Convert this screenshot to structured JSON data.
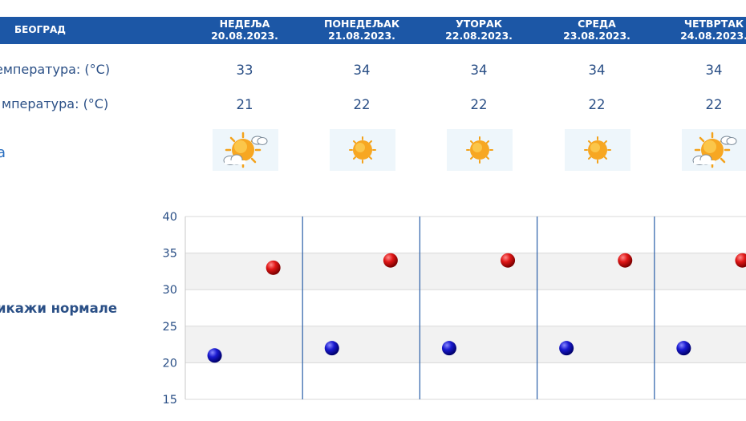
{
  "header": {
    "city": "БЕОГРАД"
  },
  "days": [
    {
      "name": "НЕДЕЉА",
      "date": "20.08.2023.",
      "max": "33",
      "min": "21",
      "icon": "partly-cloudy-sun-icon"
    },
    {
      "name": "ПОНЕДЕЉАК",
      "date": "21.08.2023.",
      "max": "34",
      "min": "22",
      "icon": "sun-icon"
    },
    {
      "name": "УТОРАК",
      "date": "22.08.2023.",
      "max": "34",
      "min": "22",
      "icon": "sun-icon"
    },
    {
      "name": "СРЕДА",
      "date": "23.08.2023.",
      "max": "34",
      "min": "22",
      "icon": "sun-icon"
    },
    {
      "name": "ЧЕТВРТАК",
      "date": "24.08.2023.",
      "max": "34",
      "min": "22",
      "icon": "partly-cloudy-sun-icon"
    }
  ],
  "rows": {
    "max_label": "емпература: (°C)",
    "min_label": "мпература: (°C)",
    "icon_row_fragment": "а"
  },
  "normals_link": "икажи нормале",
  "chart_data": {
    "type": "scatter",
    "ylim": [
      15,
      40
    ],
    "yticks": [
      "40",
      "35",
      "30",
      "25",
      "20",
      "15"
    ],
    "series": [
      {
        "values": [
          21,
          22,
          22,
          22,
          22
        ],
        "color": "#1a1ad0"
      },
      {
        "values": [
          33,
          34,
          34,
          34,
          34
        ],
        "color": "#d01010"
      }
    ]
  },
  "colors": {
    "header": "#1c57a6",
    "text": "#2a4f86",
    "icon_bg": "#eef6fb",
    "grid_band": "#f2f2f2"
  }
}
